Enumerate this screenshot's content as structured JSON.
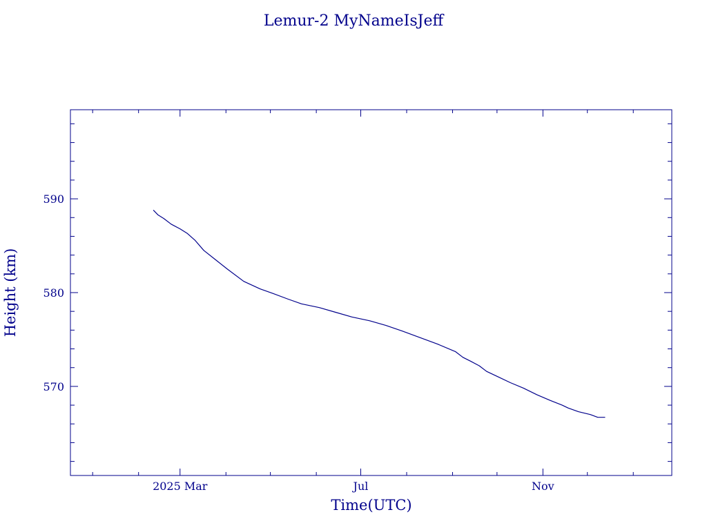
{
  "chart_data": {
    "type": "line",
    "title": "Lemur-2 MyNameIsJeff",
    "xlabel": "Time(UTC)",
    "ylabel": "Height (km)",
    "ylim": [
      560.5,
      599.5
    ],
    "xlim": [
      "2024-12-17",
      "2026-01-27"
    ],
    "x_ticks": [
      {
        "value": "2025-03-01",
        "label": "2025 Mar"
      },
      {
        "value": "2025-07-01",
        "label": "Jul"
      },
      {
        "value": "2025-11-01",
        "label": "Nov"
      }
    ],
    "y_ticks": [
      570,
      580,
      590
    ],
    "grid": false,
    "color": "#00008b",
    "series": [
      {
        "x": [
          "2025-02-11",
          "2025-02-14",
          "2025-02-18",
          "2025-02-23",
          "2025-03-01",
          "2025-03-06",
          "2025-03-11",
          "2025-03-17",
          "2025-03-25",
          "2025-04-02",
          "2025-04-13",
          "2025-04-24",
          "2025-05-03",
          "2025-05-13",
          "2025-05-22",
          "2025-06-03",
          "2025-06-14",
          "2025-06-25",
          "2025-07-07",
          "2025-07-18",
          "2025-07-29",
          "2025-08-10",
          "2025-08-22",
          "2025-09-03",
          "2025-09-08",
          "2025-09-13",
          "2025-09-19",
          "2025-09-24",
          "2025-10-02",
          "2025-10-10",
          "2025-10-19",
          "2025-10-28",
          "2025-11-06",
          "2025-11-14",
          "2025-11-18",
          "2025-11-25",
          "2025-12-03",
          "2025-12-08",
          "2025-12-13"
        ],
        "y": [
          588.8,
          588.3,
          587.9,
          587.3,
          586.8,
          586.3,
          585.6,
          584.5,
          583.5,
          582.5,
          581.2,
          580.4,
          579.9,
          579.3,
          578.8,
          578.4,
          577.9,
          577.4,
          577.0,
          576.5,
          575.9,
          575.2,
          574.5,
          573.7,
          573.1,
          572.7,
          572.2,
          571.6,
          571.0,
          570.4,
          569.8,
          569.1,
          568.5,
          568.0,
          567.7,
          567.3,
          567.0,
          566.7,
          566.7
        ]
      }
    ]
  }
}
